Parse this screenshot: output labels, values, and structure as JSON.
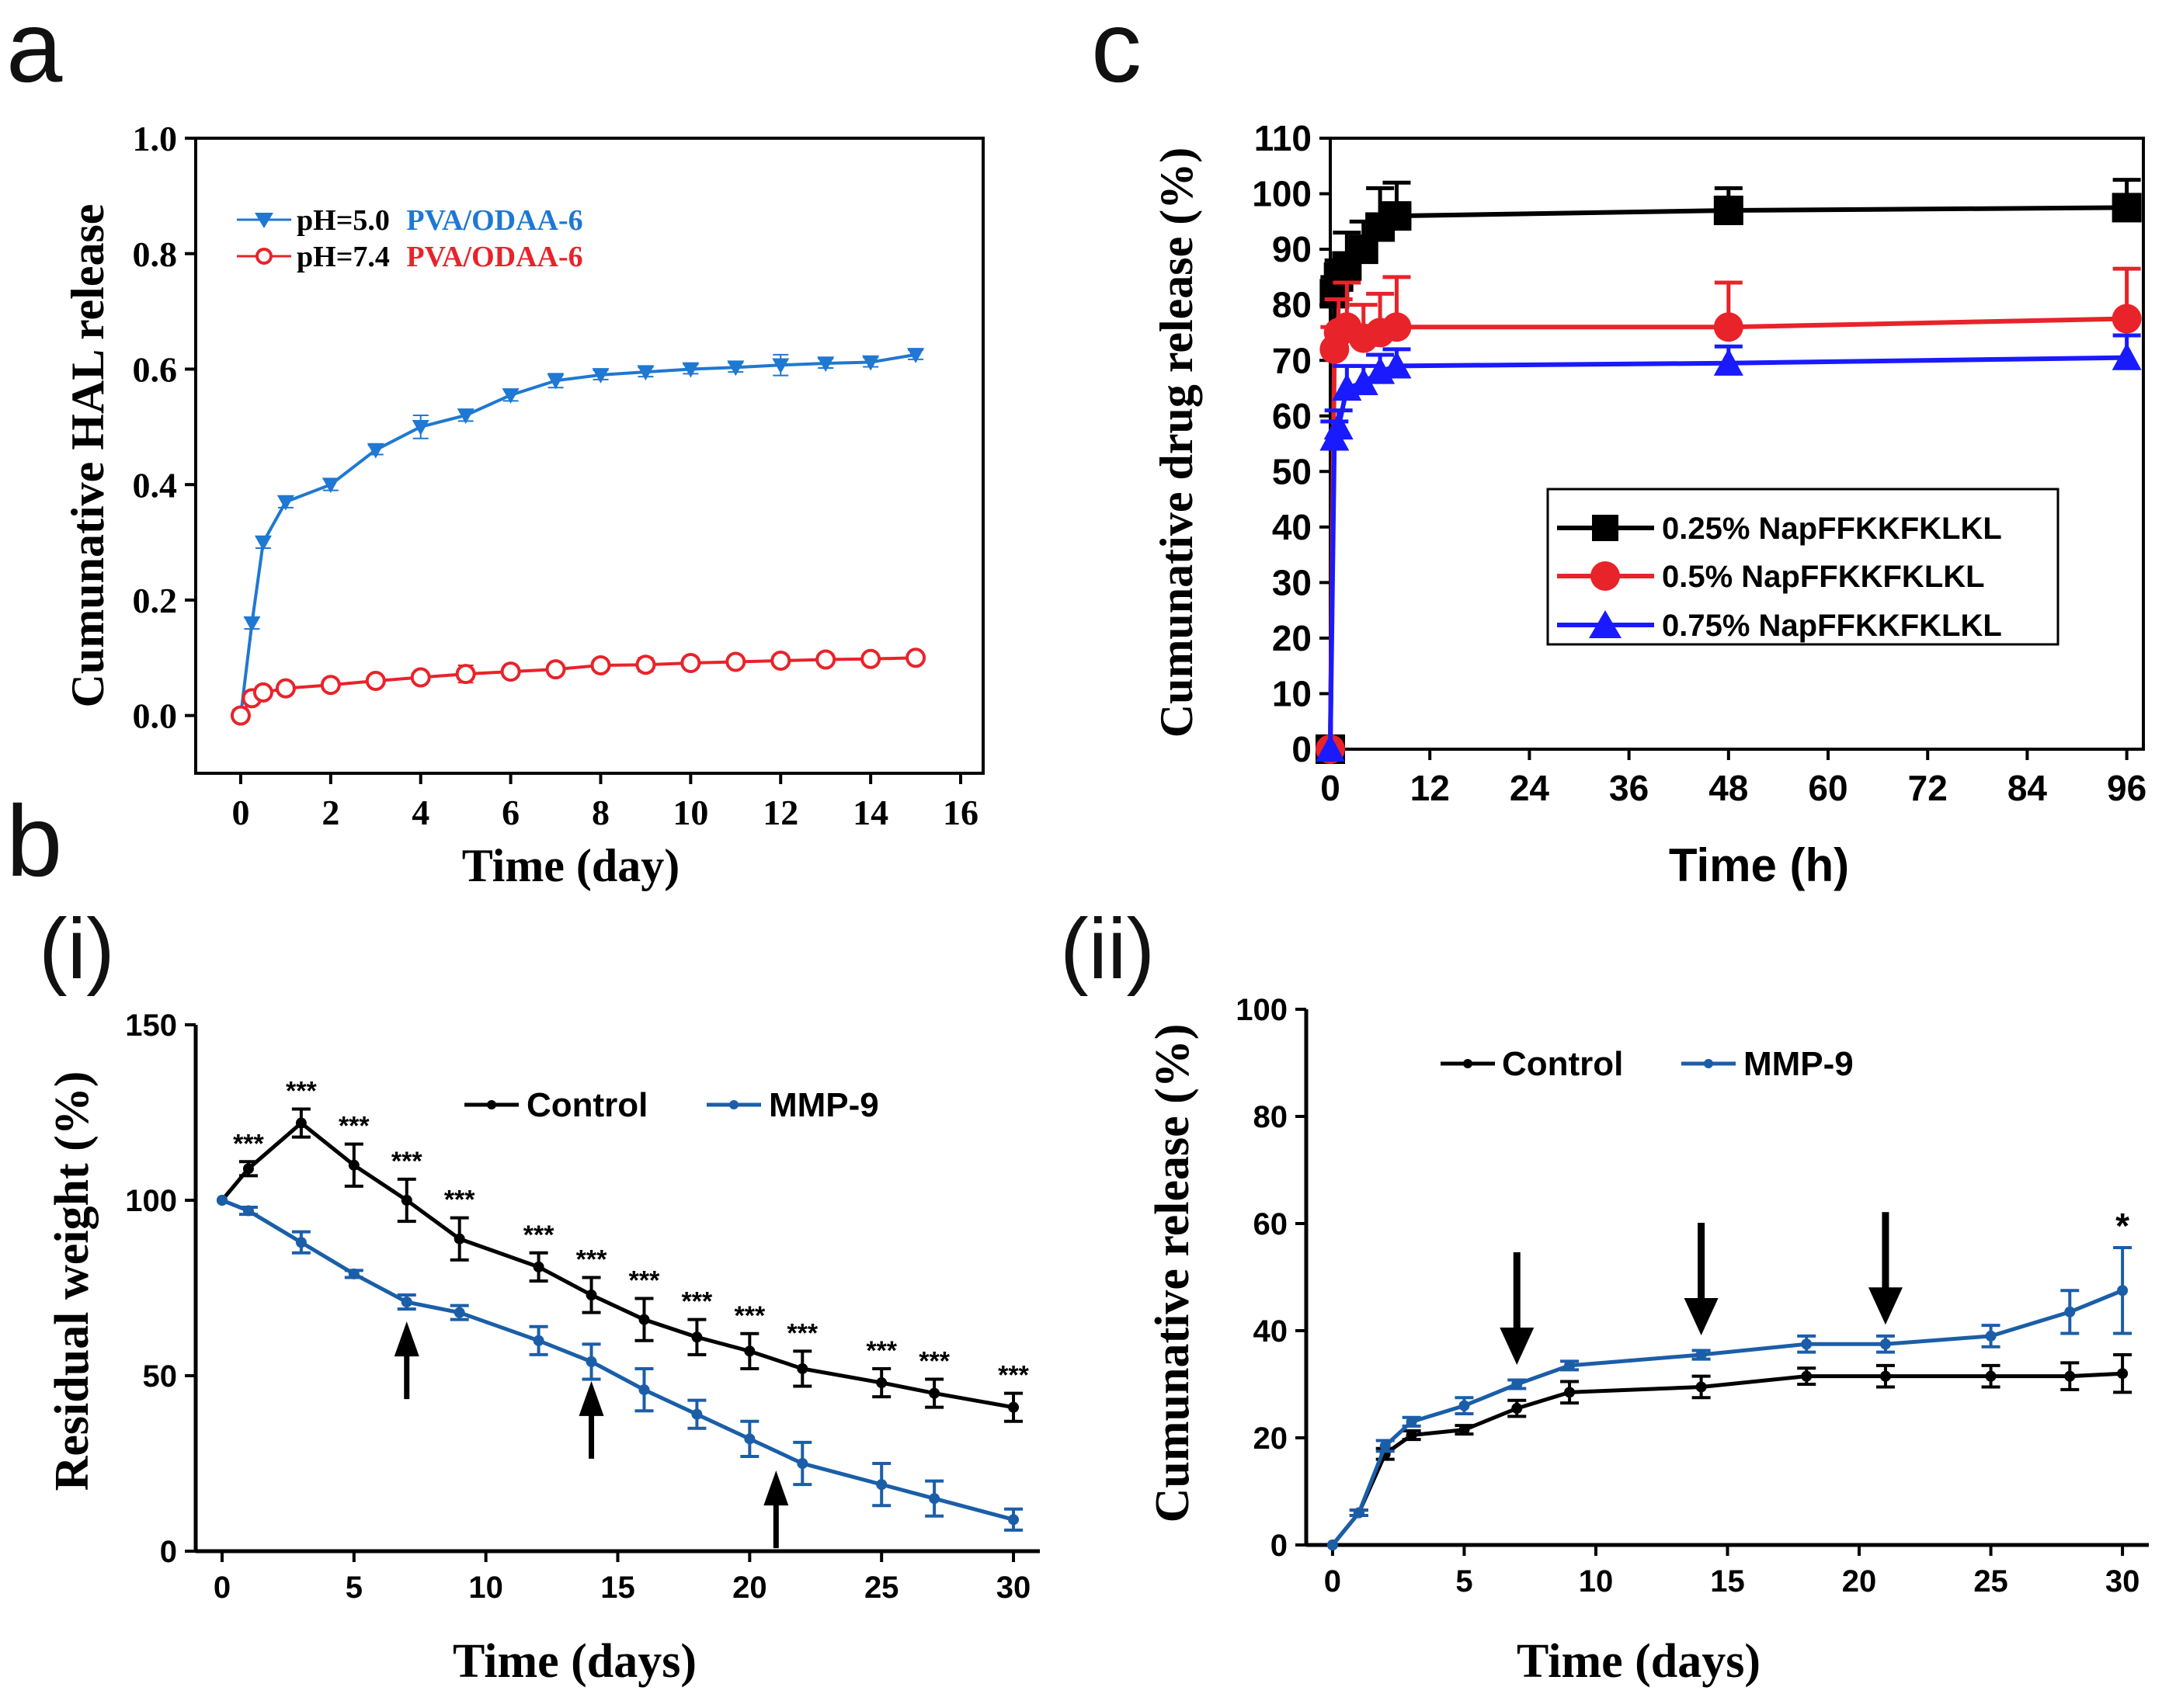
{
  "panel_labels": {
    "a": "a",
    "b": "b",
    "c": "c",
    "bi": "(i)",
    "bii": "(ii)"
  },
  "colors": {
    "blue": "#1f78d1",
    "red": "#e8232a",
    "black": "#000000",
    "navy": "#1b5ea8",
    "tri_blue": "#1a1aff"
  },
  "chart_data": [
    {
      "id": "a",
      "type": "line",
      "title": "",
      "xlabel": "Time (day)",
      "ylabel": "Cumunative HAL release",
      "xlim": [
        -1,
        16.5
      ],
      "ylim": [
        -0.1,
        1.0
      ],
      "xticks": [
        0,
        2,
        4,
        6,
        8,
        10,
        12,
        14,
        16
      ],
      "yticks": [
        0.0,
        0.2,
        0.4,
        0.6,
        0.8,
        1.0
      ],
      "xtick_labels": [
        "0",
        "2",
        "4",
        "6",
        "8",
        "10",
        "12",
        "14",
        "16"
      ],
      "ytick_labels": [
        "0.0",
        "0.2",
        "0.4",
        "0.6",
        "0.8",
        "1.0"
      ],
      "legend_position": "top-left",
      "series": [
        {
          "name_prefix": "pH=5.0",
          "name_suffix": "PVA/ODAA-6",
          "color": "#1f78d1",
          "marker": "triangle-down",
          "x": [
            0,
            0.25,
            0.5,
            1,
            2,
            3,
            4,
            5,
            6,
            7,
            8,
            9,
            10,
            11,
            12,
            13,
            14,
            15
          ],
          "y": [
            0.0,
            0.16,
            0.3,
            0.37,
            0.4,
            0.46,
            0.5,
            0.52,
            0.555,
            0.58,
            0.59,
            0.595,
            0.6,
            0.603,
            0.607,
            0.61,
            0.612,
            0.625
          ],
          "err": [
            0,
            0.01,
            0.01,
            0.01,
            0.01,
            0.008,
            0.02,
            0.01,
            0.01,
            0.012,
            0.008,
            0.008,
            0.008,
            0.008,
            0.018,
            0.008,
            0.008,
            0.008
          ]
        },
        {
          "name_prefix": "pH=7.4",
          "name_suffix": "PVA/ODAA-6",
          "color": "#e8232a",
          "marker": "circle",
          "x": [
            0,
            0.25,
            0.5,
            1,
            2,
            3,
            4,
            5,
            6,
            7,
            8,
            9,
            10,
            11,
            12,
            13,
            14,
            15
          ],
          "y": [
            0.0,
            0.03,
            0.04,
            0.047,
            0.053,
            0.06,
            0.066,
            0.072,
            0.076,
            0.08,
            0.087,
            0.088,
            0.091,
            0.093,
            0.095,
            0.097,
            0.098,
            0.1
          ],
          "err": [
            0,
            0.005,
            0.005,
            0.005,
            0.005,
            0.008,
            0.005,
            0.015,
            0.008,
            0.005,
            0.008,
            0.012,
            0.006,
            0.006,
            0.006,
            0.005,
            0.005,
            0.005
          ]
        }
      ]
    },
    {
      "id": "c",
      "type": "line",
      "title": "",
      "xlabel": "Time (h)",
      "ylabel": "Cumunative drug release (%)",
      "xlim": [
        0,
        98
      ],
      "ylim": [
        0,
        110
      ],
      "xticks": [
        0,
        12,
        24,
        36,
        48,
        60,
        72,
        84,
        96
      ],
      "yticks": [
        0,
        10,
        20,
        30,
        40,
        50,
        60,
        70,
        80,
        90,
        100,
        110
      ],
      "xtick_labels": [
        "0",
        "12",
        "24",
        "36",
        "48",
        "60",
        "72",
        "84",
        "96"
      ],
      "ytick_labels": [
        "0",
        "10",
        "20",
        "30",
        "40",
        "50",
        "60",
        "70",
        "80",
        "90",
        "100",
        "110"
      ],
      "legend_position": "center-right",
      "series": [
        {
          "name": "0.25% NapFFKKFKLKL",
          "color": "#000000",
          "marker": "square",
          "x": [
            0,
            0.5,
            1,
            2,
            4,
            6,
            8,
            48,
            96
          ],
          "y": [
            0,
            82,
            85,
            87,
            90,
            94,
            96,
            97,
            97.5
          ],
          "err": [
            0,
            3,
            3,
            6,
            5,
            7,
            6,
            4,
            5
          ]
        },
        {
          "name": "0.5% NapFFKKFKLKL",
          "color": "#e8232a",
          "marker": "circle",
          "x": [
            0,
            0.5,
            1,
            2,
            4,
            6,
            8,
            48,
            96
          ],
          "y": [
            0,
            72,
            75,
            76,
            74,
            75,
            76,
            76,
            77.5
          ],
          "err": [
            0,
            4,
            6,
            8,
            6,
            7,
            9,
            8,
            9
          ]
        },
        {
          "name": "0.75% NapFFKKFKLKL",
          "color": "#1a1aff",
          "marker": "triangle",
          "x": [
            0,
            0.5,
            1,
            2,
            4,
            6,
            8,
            48,
            96
          ],
          "y": [
            0,
            56,
            58,
            65,
            66,
            68,
            69,
            69.5,
            70.5
          ],
          "err": [
            0,
            3,
            3,
            4,
            3,
            3,
            3,
            3,
            4
          ]
        }
      ]
    },
    {
      "id": "b-i",
      "type": "line",
      "title": "",
      "xlabel": "Time (days)",
      "ylabel": "Residual weight (%)",
      "xlim": [
        -1,
        31
      ],
      "ylim": [
        0,
        150
      ],
      "xticks": [
        0,
        5,
        10,
        15,
        20,
        25,
        30
      ],
      "yticks": [
        0,
        50,
        100,
        150
      ],
      "xtick_labels": [
        "0",
        "5",
        "10",
        "15",
        "20",
        "25",
        "30"
      ],
      "ytick_labels": [
        "0",
        "50",
        "100",
        "150"
      ],
      "legend_position": "top-right",
      "significance_label": "***",
      "arrows_x": [
        7,
        14,
        21
      ],
      "series": [
        {
          "name": "Control",
          "color": "#000000",
          "x": [
            0,
            1,
            3,
            5,
            7,
            9,
            12,
            14,
            16,
            18,
            20,
            22,
            25,
            27,
            30
          ],
          "y": [
            100,
            109,
            122,
            110,
            100,
            89,
            81,
            73,
            66,
            61,
            57,
            52,
            48,
            45,
            41
          ],
          "err": [
            0,
            2,
            4,
            6,
            6,
            6,
            4,
            5,
            6,
            5,
            5,
            5,
            4,
            4,
            4
          ],
          "sig_x": [
            1,
            3,
            5,
            7,
            9,
            12,
            14,
            16,
            18,
            20,
            22,
            25,
            27,
            30
          ]
        },
        {
          "name": "MMP-9",
          "color": "#1b5ea8",
          "x": [
            0,
            1,
            3,
            5,
            7,
            9,
            12,
            14,
            16,
            18,
            20,
            22,
            25,
            27,
            30
          ],
          "y": [
            100,
            97,
            88,
            79,
            71,
            68,
            60,
            54,
            46,
            39,
            32,
            25,
            19,
            15,
            9
          ],
          "err": [
            0,
            1,
            3,
            1,
            2,
            2,
            4,
            5,
            6,
            4,
            5,
            6,
            6,
            5,
            3
          ]
        }
      ]
    },
    {
      "id": "b-ii",
      "type": "line",
      "title": "",
      "xlabel": "Time (days)",
      "ylabel": "Cumunative release (%)",
      "xlim": [
        -1,
        31
      ],
      "ylim": [
        0,
        100
      ],
      "xticks": [
        0,
        5,
        10,
        15,
        20,
        25,
        30
      ],
      "yticks": [
        0,
        20,
        40,
        60,
        80,
        100
      ],
      "xtick_labels": [
        "0",
        "5",
        "10",
        "15",
        "20",
        "25",
        "30"
      ],
      "ytick_labels": [
        "0",
        "20",
        "40",
        "60",
        "80",
        "100"
      ],
      "legend_position": "top-left",
      "significance_label": "*",
      "arrows_x": [
        7,
        14,
        21
      ],
      "series": [
        {
          "name": "Control",
          "color": "#000000",
          "x": [
            0,
            1,
            2,
            3,
            5,
            7,
            9,
            14,
            18,
            21,
            25,
            28,
            30
          ],
          "y": [
            0,
            6,
            17,
            20.5,
            21.5,
            25.5,
            28.5,
            29.5,
            31.5,
            31.5,
            31.5,
            31.5,
            32
          ],
          "err": [
            0,
            0.5,
            1,
            0.8,
            0.8,
            1.5,
            2,
            2,
            1.5,
            2,
            2,
            2.5,
            3.5
          ]
        },
        {
          "name": "MMP-9",
          "color": "#1b5ea8",
          "x": [
            0,
            1,
            2,
            3,
            5,
            7,
            9,
            14,
            18,
            21,
            25,
            28,
            30
          ],
          "y": [
            0,
            6,
            18.5,
            23,
            26,
            30,
            33.5,
            35.5,
            37.5,
            37.5,
            39,
            43.5,
            47.5
          ],
          "err": [
            0,
            0.5,
            1,
            0.8,
            1.5,
            0.8,
            0.8,
            0.8,
            1.5,
            1.5,
            2,
            4,
            8
          ]
        }
      ]
    }
  ]
}
